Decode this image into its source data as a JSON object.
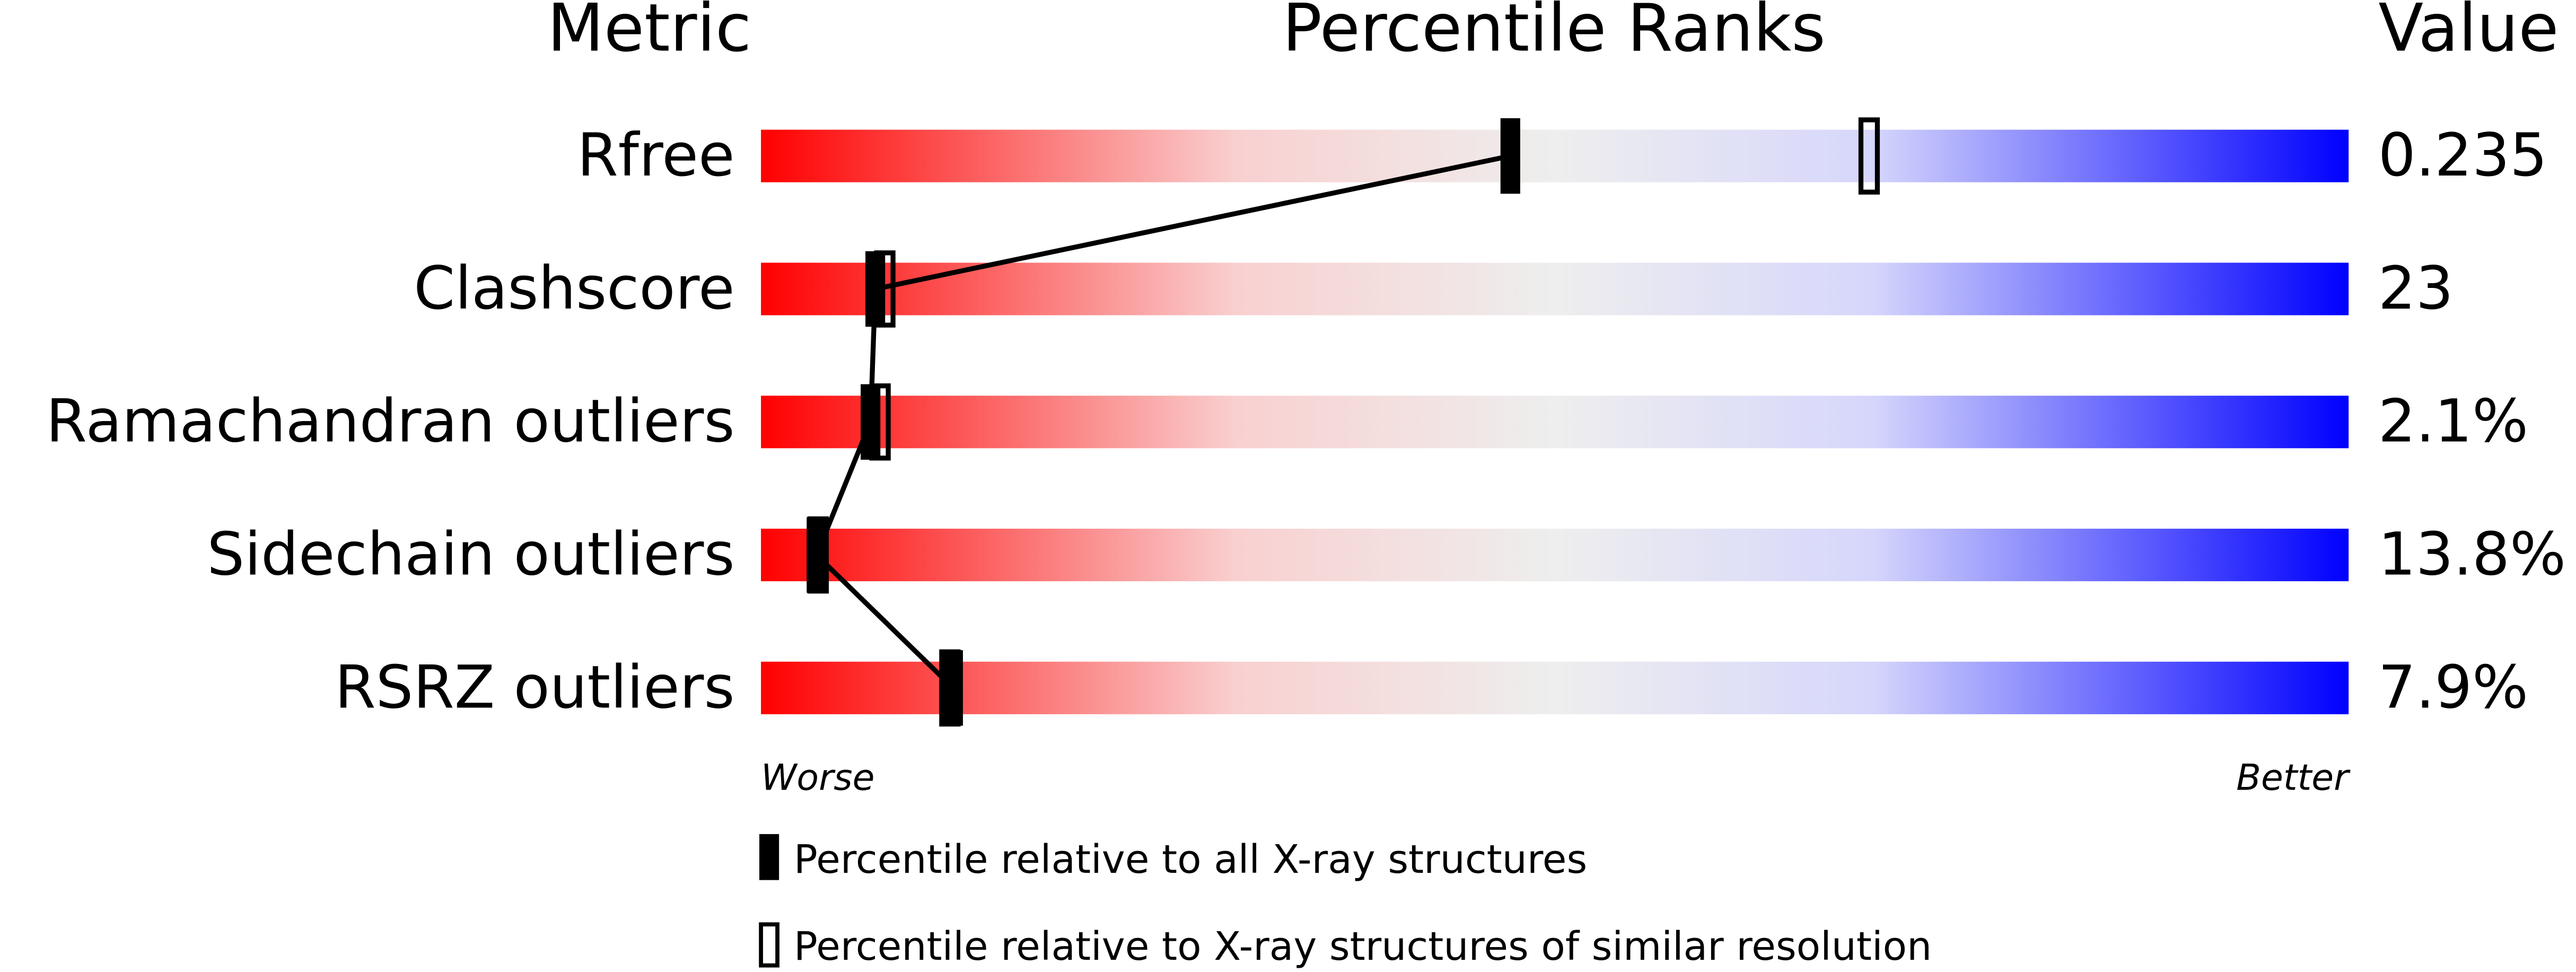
{
  "chart_data": {
    "type": "percentile",
    "headers": [
      "Metric",
      "Percentile Ranks",
      "Value"
    ],
    "categories": [
      "Rfree",
      "Clashscore",
      "Ramachandran outliers",
      "Sidechain outliers",
      "RSRZ outliers"
    ],
    "metric_values": [
      "0.235",
      "23",
      "2.1%",
      "13.8%",
      "7.9%"
    ],
    "xlim": [
      0,
      100
    ],
    "axis_ends": [
      "Worse",
      "Better"
    ],
    "series": [
      {
        "name": "Percentile relative to all X-ray structures",
        "color": "#000000",
        "style": "filled",
        "values": [
          47.2,
          7.2,
          6.9,
          3.5,
          12.1
        ]
      },
      {
        "name": "Percentile relative to X-ray structures of similar resolution",
        "color": "#000000",
        "style": "open",
        "values": [
          69.8,
          7.8,
          7.5,
          3.6,
          11.9
        ]
      }
    ]
  }
}
